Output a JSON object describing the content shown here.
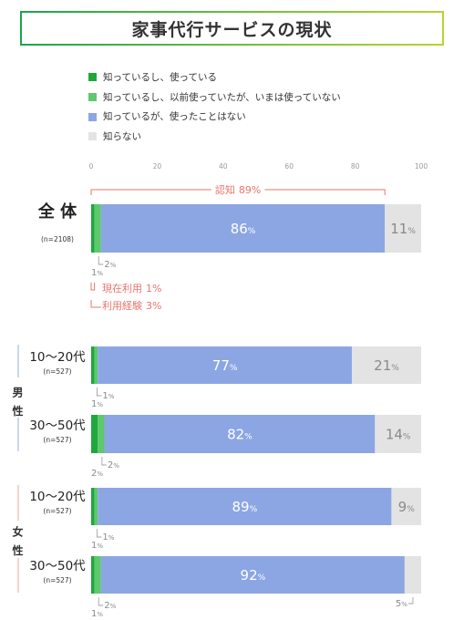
{
  "colors": {
    "title_border_start": "#1aa64a",
    "title_border_end": "#b5d532",
    "annotation": "#e8766c",
    "male_group": "#a9bbe6",
    "female_group": "#f1b7a5"
  },
  "chart_data": {
    "type": "bar",
    "orientation": "horizontal",
    "stacked": true,
    "title": "家事代行サービスの現状",
    "xlim": [
      0,
      100
    ],
    "xticks": [
      0,
      20,
      40,
      60,
      80,
      100
    ],
    "unit": "%",
    "grid": false,
    "legend_position": "top-left",
    "categories": [
      "全 体",
      "10〜20代",
      "30〜50代",
      "10〜20代",
      "30〜50代"
    ],
    "sample_sizes": [
      "(n=2108)",
      "(n=527)",
      "(n=527)",
      "(n=527)",
      "(n=527)"
    ],
    "groups": [
      {
        "label": "男性"
      },
      {
        "label": "女性"
      }
    ],
    "series": [
      {
        "name": "知っているし、使っている",
        "color": "#1ea83c",
        "values": [
          1,
          1,
          2,
          1,
          1
        ]
      },
      {
        "name": "知っているし、以前使っていたが、いまは使っていない",
        "color": "#5ec86c",
        "values": [
          2,
          1,
          2,
          1,
          2
        ]
      },
      {
        "name": "知っているが、使ったことはない",
        "color": "#8ca6e4",
        "values": [
          86,
          77,
          82,
          89,
          92
        ]
      },
      {
        "name": "知らない",
        "color": "#e3e3e3",
        "values": [
          11,
          21,
          14,
          9,
          5
        ]
      }
    ],
    "annotations": [
      {
        "label": "認知",
        "value": 89
      },
      {
        "label": "現在利用",
        "value": 1
      },
      {
        "label": "利用経験",
        "value": 3
      }
    ]
  }
}
